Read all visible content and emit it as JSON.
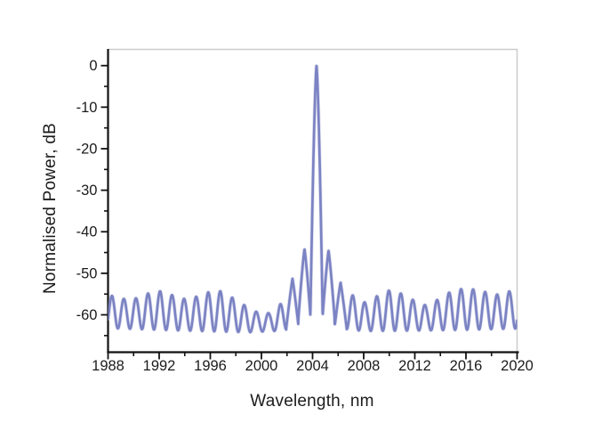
{
  "chart_data": {
    "type": "line",
    "title": "",
    "xlabel": "Wavelength, nm",
    "ylabel": "Normalised Power, dB",
    "xlim": [
      1988,
      2020
    ],
    "ylim": [
      -69,
      3.9
    ],
    "x_major_ticks": [
      1988,
      1992,
      1996,
      2000,
      2004,
      2008,
      2012,
      2016,
      2020
    ],
    "x_minor_ticks": [
      1990,
      1994,
      1998,
      2002,
      2006,
      2010,
      2014,
      2018
    ],
    "y_major_ticks": [
      0,
      -10,
      -20,
      -30,
      -40,
      -50,
      -60
    ],
    "y_minor_ticks": [
      -5,
      -15,
      -25,
      -35,
      -45,
      -55,
      -65
    ],
    "grid": false,
    "legend": null,
    "main_peak": {
      "wavelength_nm": 2004.3,
      "power_db": 0
    },
    "sidelobes": [
      {
        "wavelength_nm": 2002.4,
        "power_db": -51.3
      },
      {
        "wavelength_nm": 2003.4,
        "power_db": -44.2
      },
      {
        "wavelength_nm": 2005.3,
        "power_db": -44.6
      },
      {
        "wavelength_nm": 2006.2,
        "power_db": -52.2
      }
    ],
    "ripple": {
      "period_nm": 0.942,
      "first_crest_nm": 1988.3,
      "feature_window": [
        2001.96,
        2006.67
      ],
      "crest_envelope": [
        [
          1988.0,
          -55.6
        ],
        [
          1988.35,
          -55.4
        ],
        [
          1989.3,
          -56.2
        ],
        [
          1990.24,
          -56.0
        ],
        [
          1991.18,
          -54.8
        ],
        [
          1992.13,
          -54.3
        ],
        [
          1993.07,
          -55.3
        ],
        [
          1994.02,
          -56.2
        ],
        [
          1994.96,
          -55.6
        ],
        [
          1995.91,
          -54.5
        ],
        [
          1996.85,
          -54.3
        ],
        [
          1997.8,
          -56.0
        ],
        [
          1998.74,
          -57.8
        ],
        [
          1999.69,
          -59.4
        ],
        [
          2000.63,
          -59.6
        ],
        [
          2001.49,
          -57.4
        ],
        [
          2007.14,
          -55.3
        ],
        [
          2008.2,
          -57.2
        ],
        [
          2009.14,
          -55.3
        ],
        [
          2010.09,
          -54.0
        ],
        [
          2011.03,
          -55.0
        ],
        [
          2011.98,
          -56.6
        ],
        [
          2012.92,
          -57.8
        ],
        [
          2013.87,
          -56.2
        ],
        [
          2014.81,
          -54.4
        ],
        [
          2015.76,
          -53.7
        ],
        [
          2016.7,
          -53.9
        ],
        [
          2017.65,
          -54.6
        ],
        [
          2018.59,
          -55.2
        ],
        [
          2019.54,
          -54.2
        ],
        [
          2020.3,
          -53.4
        ]
      ],
      "trough_envelope": [
        [
          1988,
          -63.2
        ],
        [
          1994,
          -63.8
        ],
        [
          1999,
          -64.2
        ],
        [
          2001.6,
          -63.8
        ],
        [
          2002.5,
          -63.2
        ],
        [
          2003.5,
          -61.0
        ],
        [
          2004.3,
          -60.2
        ],
        [
          2005.3,
          -61.2
        ],
        [
          2006.2,
          -63.3
        ],
        [
          2008,
          -63.9
        ],
        [
          2012,
          -63.8
        ],
        [
          2016,
          -63.6
        ],
        [
          2020,
          -63.3
        ]
      ]
    },
    "spikes": [
      {
        "label": "second-sidelobe-left",
        "center": 2002.43,
        "top_db": -51.3,
        "base_db": -63.0,
        "halfwidth_nm": 0.48,
        "exponent": 1.1
      },
      {
        "label": "first-sidelobe-left",
        "center": 2003.37,
        "top_db": -44.2,
        "base_db": -61.0,
        "halfwidth_nm": 0.48,
        "exponent": 1.2
      },
      {
        "label": "main-peak",
        "center": 2004.31,
        "top_db": 0.0,
        "base_db": -60.3,
        "halfwidth_nm": 0.48,
        "exponent": 1.45
      },
      {
        "label": "first-sidelobe-right",
        "center": 2005.25,
        "top_db": -44.6,
        "base_db": -61.0,
        "halfwidth_nm": 0.48,
        "exponent": 1.2
      },
      {
        "label": "second-sidelobe-right",
        "center": 2006.19,
        "top_db": -52.2,
        "base_db": -63.3,
        "halfwidth_nm": 0.48,
        "exponent": 1.1
      }
    ],
    "colors": {
      "line": "#7b83c3",
      "line_halo": "#b3b8de",
      "axis": "#121212",
      "frame": "#cccccc",
      "background": "#ffffff",
      "tick_label": "#1c1c1c"
    }
  }
}
